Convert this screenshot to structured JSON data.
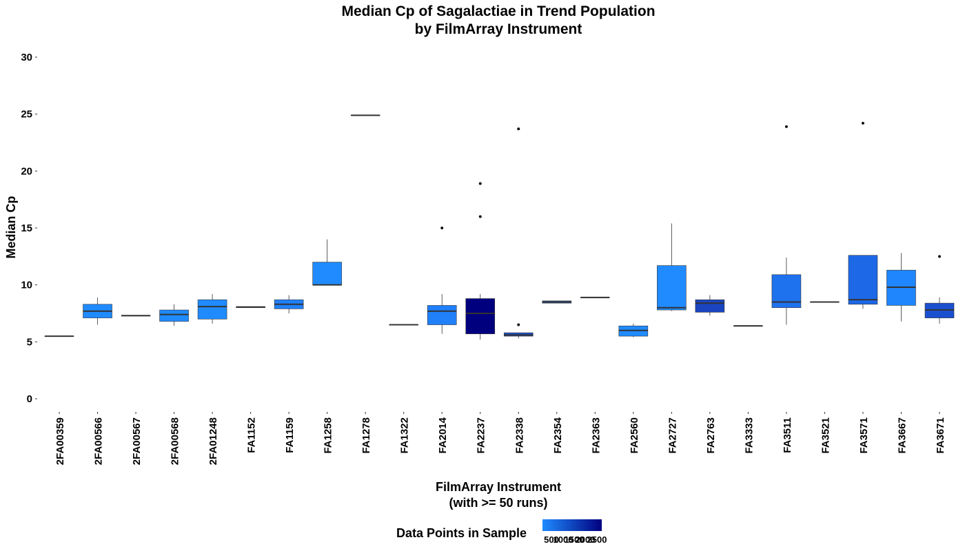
{
  "chart_data": {
    "type": "boxplot",
    "title": [
      "Median Cp of Sagalactiae in Trend Population",
      "by FilmArray Instrument"
    ],
    "xlabel": [
      "FilmArray Instrument",
      "(with >= 50 runs)"
    ],
    "ylabel": "Median Cp",
    "ylim": [
      -1,
      31
    ],
    "yticks": [
      0,
      5,
      10,
      15,
      20,
      25,
      30
    ],
    "grid": false,
    "legend": {
      "title": "Data Points in Sample",
      "position": "bottom",
      "labels": [
        "500",
        "1000",
        "1500",
        "2000",
        "2500"
      ],
      "color_low": "#1f8bff",
      "color_high": "#00007f"
    },
    "categories": [
      "2FA00359",
      "2FA00566",
      "2FA00567",
      "2FA00568",
      "2FA01248",
      "FA1152",
      "FA1159",
      "FA1258",
      "FA1278",
      "FA1322",
      "FA2014",
      "FA2237",
      "FA2338",
      "FA2354",
      "FA2363",
      "FA2560",
      "FA2727",
      "FA2763",
      "FA3333",
      "FA3511",
      "FA3521",
      "FA3571",
      "FA3667",
      "FA3671"
    ],
    "boxes": [
      {
        "whisker_low": 5.5,
        "q1": 5.5,
        "median": 5.5,
        "q3": 5.5,
        "whisker_high": 5.5,
        "outliers": [],
        "color": "#1f8bff"
      },
      {
        "whisker_low": 6.5,
        "q1": 7.1,
        "median": 7.7,
        "q3": 8.3,
        "whisker_high": 8.9,
        "outliers": [],
        "color": "#1f8bff"
      },
      {
        "whisker_low": 7.3,
        "q1": 7.3,
        "median": 7.3,
        "q3": 7.3,
        "whisker_high": 7.3,
        "outliers": [],
        "color": "#1f8bff"
      },
      {
        "whisker_low": 6.4,
        "q1": 6.8,
        "median": 7.4,
        "q3": 7.8,
        "whisker_high": 8.3,
        "outliers": [],
        "color": "#1f8bff"
      },
      {
        "whisker_low": 6.6,
        "q1": 7.0,
        "median": 8.1,
        "q3": 8.7,
        "whisker_high": 9.2,
        "outliers": [],
        "color": "#1f8bff"
      },
      {
        "whisker_low": 8.0,
        "q1": 8.0,
        "median": 8.05,
        "q3": 8.1,
        "whisker_high": 8.1,
        "outliers": [],
        "color": "#1f8bff"
      },
      {
        "whisker_low": 7.5,
        "q1": 7.9,
        "median": 8.3,
        "q3": 8.7,
        "whisker_high": 9.1,
        "outliers": [],
        "color": "#2080fa"
      },
      {
        "whisker_low": 10.0,
        "q1": 10.0,
        "median": 10.0,
        "q3": 12.0,
        "whisker_high": 14.0,
        "outliers": [],
        "color": "#1f8bff"
      },
      {
        "whisker_low": 24.9,
        "q1": 24.9,
        "median": 24.9,
        "q3": 24.9,
        "whisker_high": 24.9,
        "outliers": [],
        "color": "#1f8bff"
      },
      {
        "whisker_low": 6.5,
        "q1": 6.5,
        "median": 6.5,
        "q3": 6.5,
        "whisker_high": 6.5,
        "outliers": [],
        "color": "#1f8bff"
      },
      {
        "whisker_low": 5.7,
        "q1": 6.5,
        "median": 7.7,
        "q3": 8.2,
        "whisker_high": 9.2,
        "outliers": [
          15.0
        ],
        "color": "#2080fa"
      },
      {
        "whisker_low": 5.2,
        "q1": 5.7,
        "median": 7.5,
        "q3": 8.8,
        "whisker_high": 9.2,
        "outliers": [
          16.0,
          18.9
        ],
        "color": "#00007f"
      },
      {
        "whisker_low": 5.3,
        "q1": 5.5,
        "median": 5.6,
        "q3": 5.8,
        "whisker_high": 5.8,
        "outliers": [
          6.5,
          23.7
        ],
        "color": "#1a4fcf"
      },
      {
        "whisker_low": 8.4,
        "q1": 8.4,
        "median": 8.5,
        "q3": 8.6,
        "whisker_high": 8.6,
        "outliers": [],
        "color": "#1a5fd9"
      },
      {
        "whisker_low": 8.9,
        "q1": 8.9,
        "median": 8.9,
        "q3": 8.9,
        "whisker_high": 8.9,
        "outliers": [],
        "color": "#1f8bff"
      },
      {
        "whisker_low": 5.4,
        "q1": 5.5,
        "median": 6.0,
        "q3": 6.4,
        "whisker_high": 6.6,
        "outliers": [],
        "color": "#1f8bff"
      },
      {
        "whisker_low": 7.7,
        "q1": 7.8,
        "median": 8.0,
        "q3": 11.7,
        "whisker_high": 15.4,
        "outliers": [],
        "color": "#1f8bff"
      },
      {
        "whisker_low": 7.3,
        "q1": 7.6,
        "median": 8.4,
        "q3": 8.7,
        "whisker_high": 9.1,
        "outliers": [],
        "color": "#1a45c0"
      },
      {
        "whisker_low": 6.4,
        "q1": 6.4,
        "median": 6.4,
        "q3": 6.4,
        "whisker_high": 6.4,
        "outliers": [],
        "color": "#1f8bff"
      },
      {
        "whisker_low": 6.5,
        "q1": 8.0,
        "median": 8.5,
        "q3": 10.9,
        "whisker_high": 12.4,
        "outliers": [
          23.9
        ],
        "color": "#1e72ee"
      },
      {
        "whisker_low": 8.5,
        "q1": 8.5,
        "median": 8.5,
        "q3": 8.5,
        "whisker_high": 8.5,
        "outliers": [],
        "color": "#1f8bff"
      },
      {
        "whisker_low": 7.9,
        "q1": 8.3,
        "median": 8.7,
        "q3": 12.6,
        "whisker_high": 12.6,
        "outliers": [
          24.2
        ],
        "color": "#1d68e6"
      },
      {
        "whisker_low": 6.8,
        "q1": 8.2,
        "median": 9.8,
        "q3": 11.3,
        "whisker_high": 12.8,
        "outliers": [],
        "color": "#1f86fd"
      },
      {
        "whisker_low": 6.6,
        "q1": 7.1,
        "median": 7.8,
        "q3": 8.4,
        "whisker_high": 8.9,
        "outliers": [
          12.5
        ],
        "color": "#1a50d0"
      }
    ]
  }
}
